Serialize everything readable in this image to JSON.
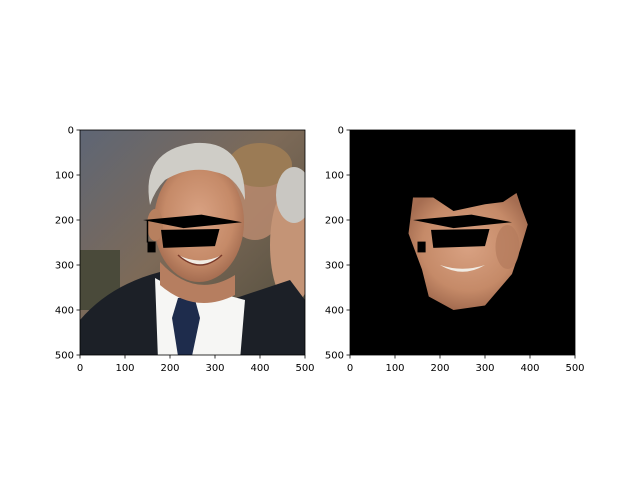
{
  "chart_data": [
    {
      "type": "image",
      "title": "",
      "xlabel": "",
      "ylabel": "",
      "xlim": [
        0,
        500
      ],
      "ylim": [
        500,
        0
      ],
      "xticks": [
        0,
        100,
        200,
        300,
        400,
        500
      ],
      "yticks": [
        0,
        100,
        200,
        300,
        400,
        500
      ],
      "content": "photo",
      "overlays": [
        {
          "kind": "mortarboard",
          "points": [
            [
              140,
              200
            ],
            [
              270,
              188
            ],
            [
              360,
              205
            ],
            [
              230,
              218
            ]
          ]
        },
        {
          "kind": "cap-band",
          "points": [
            [
              180,
              222
            ],
            [
              310,
              220
            ],
            [
              300,
              258
            ],
            [
              185,
              262
            ]
          ]
        },
        {
          "kind": "tassel",
          "points": [
            [
              150,
              248
            ],
            [
              168,
              248
            ],
            [
              168,
              272
            ],
            [
              150,
              272
            ]
          ]
        }
      ]
    },
    {
      "type": "image",
      "title": "",
      "xlabel": "",
      "ylabel": "",
      "xlim": [
        0,
        500
      ],
      "ylim": [
        500,
        0
      ],
      "xticks": [
        0,
        100,
        200,
        300,
        400,
        500
      ],
      "yticks": [
        0,
        100,
        200,
        300,
        400,
        500
      ],
      "content": "masked-face-on-black",
      "face_region": [
        [
          140,
          150
        ],
        [
          185,
          150
        ],
        [
          230,
          180
        ],
        [
          300,
          165
        ],
        [
          340,
          160
        ],
        [
          370,
          140
        ],
        [
          380,
          170
        ],
        [
          395,
          210
        ],
        [
          380,
          260
        ],
        [
          360,
          320
        ],
        [
          300,
          390
        ],
        [
          230,
          400
        ],
        [
          175,
          370
        ],
        [
          160,
          310
        ],
        [
          130,
          230
        ]
      ],
      "overlays": [
        {
          "kind": "mortarboard",
          "points": [
            [
              140,
              200
            ],
            [
              270,
              188
            ],
            [
              360,
              205
            ],
            [
              230,
              218
            ]
          ]
        },
        {
          "kind": "cap-band",
          "points": [
            [
              180,
              222
            ],
            [
              310,
              220
            ],
            [
              300,
              258
            ],
            [
              185,
              262
            ]
          ]
        },
        {
          "kind": "tassel",
          "points": [
            [
              150,
              248
            ],
            [
              168,
              248
            ],
            [
              168,
              272
            ],
            [
              150,
              272
            ]
          ]
        }
      ]
    }
  ],
  "colors": {
    "hair": "#c8c6c0",
    "skin": "#c98f6e",
    "suit": "#1a1e24",
    "shirt": "#ffffff",
    "tie": "#1a2a4a",
    "background_crowd": "#7a6a55",
    "background_green": "#3d5a2b",
    "mask_black": "#000000"
  }
}
